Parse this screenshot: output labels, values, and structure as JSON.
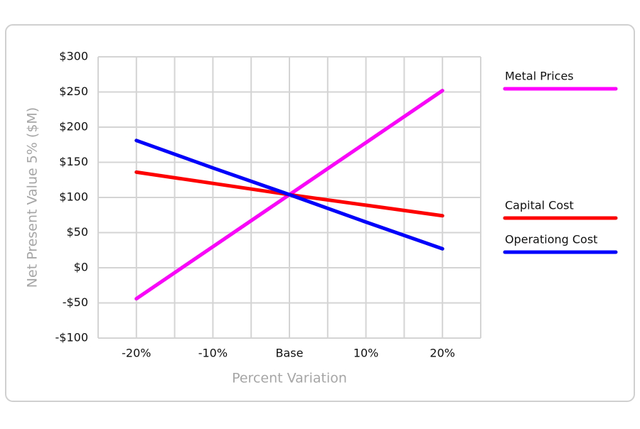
{
  "chart_data": {
    "type": "line",
    "x_label": "Percent Variation",
    "y_label": "Net Present Value 5% ($M)",
    "categories": [
      "-20%",
      "-10%",
      "Base",
      "10%",
      "20%"
    ],
    "series": [
      {
        "name": "Metal Prices",
        "color": "#ff00ff",
        "values": [
          -44,
          30,
          104,
          178,
          252
        ]
      },
      {
        "name": "Capital Cost",
        "color": "#ff0000",
        "values": [
          136,
          120,
          104,
          89,
          74
        ]
      },
      {
        "name": "Operationg Cost",
        "color": "#0000ff",
        "values": [
          181,
          142,
          104,
          65,
          27
        ]
      }
    ],
    "ylim": [
      -100,
      300
    ],
    "yticks": [
      {
        "value": -100,
        "label": "-$100"
      },
      {
        "value": -50,
        "label": "-$50"
      },
      {
        "value": 0,
        "label": "$0"
      },
      {
        "value": 50,
        "label": "$50"
      },
      {
        "value": 100,
        "label": "$100"
      },
      {
        "value": 150,
        "label": "$150"
      },
      {
        "value": 200,
        "label": "$200"
      },
      {
        "value": 250,
        "label": "$250"
      },
      {
        "value": 300,
        "label": "$300"
      }
    ],
    "grid": true,
    "legend": "right"
  }
}
